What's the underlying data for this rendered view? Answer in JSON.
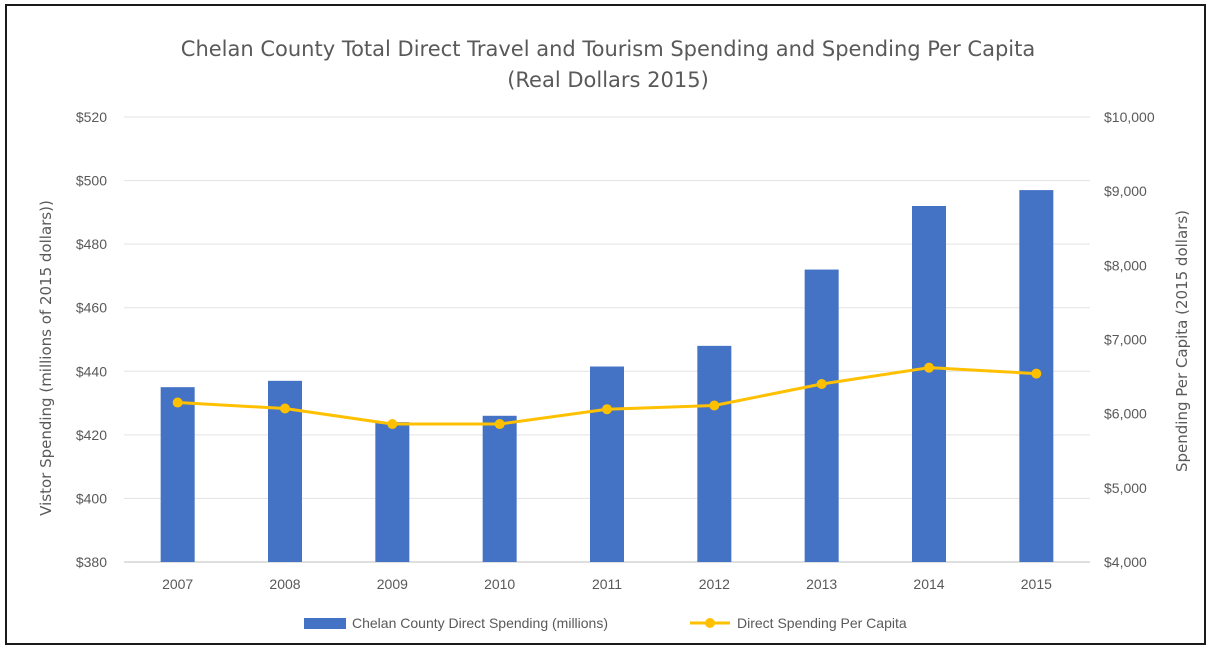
{
  "chart_data": {
    "type": "bar",
    "title": "Chelan County Total Direct Travel and Tourism Spending and Spending Per Capita",
    "subtitle": "(Real Dollars 2015)",
    "categories": [
      "2007",
      "2008",
      "2009",
      "2010",
      "2011",
      "2012",
      "2013",
      "2014",
      "2015"
    ],
    "series": [
      {
        "name": "Chelan County Direct Spending (millions)",
        "type": "bar",
        "axis": "left",
        "color": "#4472C4",
        "values": [
          435,
          437,
          424,
          426,
          441.5,
          448,
          472,
          492,
          497
        ]
      },
      {
        "name": "Direct Spending Per Capita",
        "type": "line",
        "axis": "right",
        "color": "#FFC000",
        "values": [
          6150,
          6070,
          5860,
          5860,
          6060,
          6110,
          6400,
          6620,
          6540
        ]
      }
    ],
    "ylabel": "Vistor Spending (millions of 2015 dollars))",
    "ylabel_right": "Spending Per Capita (2015 dollars)",
    "xlabel": "",
    "ylim": [
      380,
      520
    ],
    "ylim_right": [
      4000,
      10000
    ],
    "yticks": [
      "$380",
      "$400",
      "$420",
      "$440",
      "$460",
      "$480",
      "$500",
      "$520"
    ],
    "yticks_right": [
      "$4,000",
      "$5,000",
      "$6,000",
      "$7,000",
      "$8,000",
      "$9,000",
      "$10,000"
    ],
    "grid": true,
    "legend_position": "bottom"
  }
}
